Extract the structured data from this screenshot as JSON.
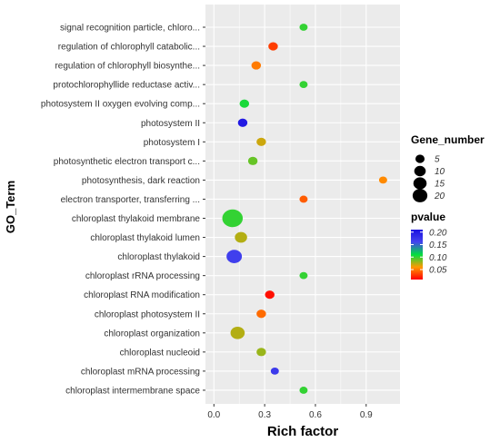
{
  "chart_data": {
    "type": "scatter",
    "xlabel": "Rich factor",
    "ylabel": "GO_Term",
    "xlim": [
      -0.05,
      1.1
    ],
    "x_ticks": [
      0.0,
      0.3,
      0.6,
      0.9
    ],
    "x_tick_labels": [
      "0.0",
      "0.3",
      "0.6",
      "0.9"
    ],
    "grid": true,
    "panel_background": "#ebebeb",
    "grid_color": "#ffffff",
    "categories": [
      "signal recognition particle, chloro...",
      "regulation of chlorophyll catabolic...",
      "regulation of chlorophyll biosynthe...",
      "protochlorophyllide reductase activ...",
      "photosystem II oxygen evolving comp...",
      "photosystem II",
      "photosystem I",
      "photosynthetic electron transport c...",
      "photosynthesis, dark reaction",
      "electron transporter, transferring ...",
      "chloroplast thylakoid membrane",
      "chloroplast thylakoid lumen",
      "chloroplast thylakoid",
      "chloroplast rRNA processing",
      "chloroplast RNA modification",
      "chloroplast photosystem II",
      "chloroplast organization",
      "chloroplast nucleoid",
      "chloroplast mRNA processing",
      "chloroplast intermembrane space"
    ],
    "points": [
      {
        "term": "signal recognition particle, chloro...",
        "rich_factor": 0.53,
        "gene_number": 1,
        "pvalue": 0.1
      },
      {
        "term": "regulation of chlorophyll catabolic...",
        "rich_factor": 0.35,
        "gene_number": 2,
        "pvalue": 0.03
      },
      {
        "term": "regulation of chlorophyll biosynthe...",
        "rich_factor": 0.25,
        "gene_number": 2,
        "pvalue": 0.05
      },
      {
        "term": "protochlorophyllide reductase activ...",
        "rich_factor": 0.53,
        "gene_number": 1,
        "pvalue": 0.1
      },
      {
        "term": "photosystem II oxygen evolving comp...",
        "rich_factor": 0.18,
        "gene_number": 2,
        "pvalue": 0.105
      },
      {
        "term": "photosystem II",
        "rich_factor": 0.17,
        "gene_number": 2,
        "pvalue": 0.2
      },
      {
        "term": "photosystem I",
        "rich_factor": 0.28,
        "gene_number": 2,
        "pvalue": 0.07
      },
      {
        "term": "photosynthetic electron transport c...",
        "rich_factor": 0.23,
        "gene_number": 2,
        "pvalue": 0.09
      },
      {
        "term": "photosynthesis, dark reaction",
        "rich_factor": 1.0,
        "gene_number": 1,
        "pvalue": 0.055
      },
      {
        "term": "electron transporter, transferring ...",
        "rich_factor": 0.53,
        "gene_number": 1,
        "pvalue": 0.04
      },
      {
        "term": "chloroplast thylakoid membrane",
        "rich_factor": 0.11,
        "gene_number": 22,
        "pvalue": 0.1
      },
      {
        "term": "chloroplast thylakoid lumen",
        "rich_factor": 0.16,
        "gene_number": 5,
        "pvalue": 0.075
      },
      {
        "term": "chloroplast thylakoid",
        "rich_factor": 0.12,
        "gene_number": 10,
        "pvalue": 0.165
      },
      {
        "term": "chloroplast rRNA processing",
        "rich_factor": 0.53,
        "gene_number": 1,
        "pvalue": 0.1
      },
      {
        "term": "chloroplast RNA modification",
        "rich_factor": 0.33,
        "gene_number": 2,
        "pvalue": 0.015
      },
      {
        "term": "chloroplast photosystem II",
        "rich_factor": 0.28,
        "gene_number": 2,
        "pvalue": 0.045
      },
      {
        "term": "chloroplast organization",
        "rich_factor": 0.14,
        "gene_number": 8,
        "pvalue": 0.075
      },
      {
        "term": "chloroplast nucleoid",
        "rich_factor": 0.28,
        "gene_number": 2,
        "pvalue": 0.08
      },
      {
        "term": "chloroplast mRNA processing",
        "rich_factor": 0.36,
        "gene_number": 1,
        "pvalue": 0.17
      },
      {
        "term": "chloroplast intermembrane space",
        "rich_factor": 0.53,
        "gene_number": 1,
        "pvalue": 0.1
      }
    ],
    "legend_size": {
      "title": "Gene_number",
      "values": [
        5,
        10,
        15,
        20
      ],
      "labels": [
        "5",
        "10",
        "15",
        "20"
      ]
    },
    "legend_color": {
      "title": "pvalue",
      "range": [
        0.01,
        0.21
      ],
      "ticks": [
        0.2,
        0.15,
        0.1,
        0.05
      ],
      "tick_labels": [
        "0.20",
        "0.15",
        "0.10",
        "0.05"
      ],
      "stops": [
        "#ff0000",
        "#ff9900",
        "#00e040",
        "#4444ee",
        "#1a10e0"
      ]
    }
  }
}
